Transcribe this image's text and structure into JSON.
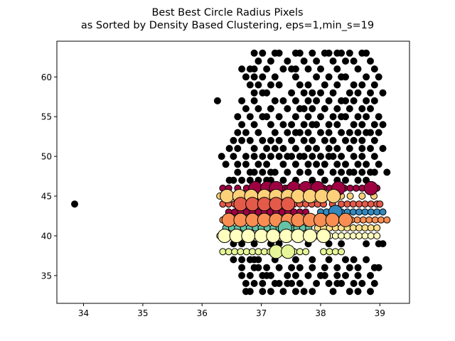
{
  "chart_data": {
    "type": "scatter",
    "title_line1": "Best Best Circle Radius Pixels",
    "title_line2": "as Sorted by Density Based Clustering, eps=1,min_s=19",
    "xlabel": "",
    "ylabel": "",
    "xlim": [
      33.55,
      39.5
    ],
    "ylim": [
      31.5,
      64.5
    ],
    "x_ticks": [
      34,
      35,
      36,
      37,
      38,
      39
    ],
    "y_ticks": [
      35,
      40,
      45,
      50,
      55,
      60
    ],
    "x_tick_labels": [
      "34",
      "35",
      "36",
      "37",
      "38",
      "39"
    ],
    "y_tick_labels": [
      "35",
      "40",
      "45",
      "50",
      "55",
      "60"
    ],
    "grid": false,
    "legend": "none",
    "noise_color": "#000000",
    "x_grid": [
      36.26,
      36.33,
      36.4,
      36.46,
      36.53,
      36.6,
      36.67,
      36.74,
      36.81,
      36.88,
      36.95,
      37.02,
      37.09,
      37.16,
      37.23,
      37.3,
      37.37,
      37.44,
      37.51,
      37.58,
      37.65,
      37.72,
      37.79,
      37.86,
      37.93,
      38.0,
      38.07,
      38.14,
      38.21,
      38.28,
      38.35,
      38.42,
      38.49,
      38.56,
      38.63,
      38.7,
      38.77,
      38.84,
      38.91,
      38.98,
      39.05,
      39.12
    ],
    "noise_rows": [
      {
        "y": 63,
        "xi": [
          9,
          11,
          14,
          15,
          19,
          20,
          23,
          26,
          27,
          29,
          30,
          32,
          35,
          36
        ]
      },
      {
        "y": 62,
        "xi": [
          10,
          13,
          17,
          21,
          24,
          28,
          31,
          33,
          37
        ]
      },
      {
        "y": 61,
        "xi": [
          6,
          8,
          9,
          12,
          16,
          18,
          19,
          22,
          25,
          29,
          34,
          38
        ]
      },
      {
        "y": 60,
        "xi": [
          7,
          9,
          11,
          14,
          19,
          24,
          27,
          30,
          31,
          36,
          39
        ]
      },
      {
        "y": 59,
        "xi": [
          8,
          10,
          13,
          15,
          20,
          22,
          26,
          29,
          33,
          35,
          38
        ]
      },
      {
        "y": 58,
        "xi": [
          9,
          11,
          12,
          18,
          21,
          23,
          25,
          28,
          32,
          34,
          37,
          40
        ]
      },
      {
        "y": 57,
        "xi": [
          0,
          6,
          9,
          14,
          16,
          19,
          22,
          24,
          27,
          30,
          31,
          33,
          36,
          38
        ]
      },
      {
        "y": 56,
        "xi": [
          7,
          10,
          13,
          17,
          20,
          21,
          23,
          26,
          29,
          32,
          35,
          37
        ]
      },
      {
        "y": 55,
        "xi": [
          5,
          8,
          11,
          12,
          15,
          19,
          22,
          25,
          28,
          30,
          31,
          34,
          36,
          39
        ]
      },
      {
        "y": 54,
        "xi": [
          6,
          9,
          13,
          16,
          18,
          21,
          23,
          24,
          27,
          29,
          33,
          35,
          38,
          40
        ]
      },
      {
        "y": 53,
        "xi": [
          5,
          7,
          10,
          14,
          17,
          19,
          20,
          22,
          25,
          27,
          30,
          32,
          34,
          36,
          37,
          39
        ]
      },
      {
        "y": 52,
        "xi": [
          4,
          6,
          8,
          11,
          13,
          15,
          18,
          21,
          23,
          26,
          28,
          31,
          33,
          35,
          38
        ]
      },
      {
        "y": 51,
        "xi": [
          3,
          5,
          9,
          12,
          14,
          16,
          19,
          22,
          24,
          27,
          29,
          32,
          35,
          37,
          40
        ]
      },
      {
        "y": 50,
        "xi": [
          1,
          4,
          7,
          9,
          11,
          13,
          15,
          17,
          18,
          20,
          21,
          23,
          25,
          27,
          28,
          30,
          33,
          35,
          38
        ]
      },
      {
        "y": 49,
        "xi": [
          2,
          5,
          7,
          10,
          12,
          16,
          19,
          22,
          24,
          26,
          29,
          31,
          34,
          36,
          39
        ]
      },
      {
        "y": 48,
        "xi": [
          5,
          8,
          9,
          11,
          13,
          14,
          17,
          20,
          22,
          25,
          28,
          30,
          32,
          33,
          35,
          37,
          38,
          41
        ]
      },
      {
        "y": 47,
        "xi": [
          3,
          4,
          6,
          8,
          10,
          12,
          13,
          16,
          19,
          23,
          26,
          29,
          31,
          34,
          36
        ]
      }
    ],
    "noise_rows_bottom": [
      {
        "y": 39,
        "xi": [
          4,
          6,
          9,
          13,
          15,
          22,
          27,
          30,
          36,
          39,
          40
        ]
      },
      {
        "y": 37,
        "xi": [
          4,
          6,
          8,
          9,
          10,
          14,
          19,
          23,
          27,
          31,
          33,
          36
        ]
      },
      {
        "y": 36,
        "xi": [
          6,
          9,
          10,
          12,
          15,
          18,
          20,
          23,
          26,
          29,
          32,
          34,
          38,
          39
        ]
      },
      {
        "y": 35,
        "xi": [
          6,
          8,
          11,
          12,
          13,
          17,
          19,
          22,
          25,
          26,
          29,
          31,
          34,
          37
        ]
      },
      {
        "y": 34,
        "xi": [
          7,
          9,
          11,
          14,
          15,
          17,
          18,
          20,
          24,
          27,
          29,
          30,
          33,
          35,
          38
        ]
      },
      {
        "y": 33,
        "xi": [
          7,
          8,
          11,
          13,
          16,
          19,
          21,
          23,
          28,
          32,
          34,
          37
        ]
      }
    ],
    "outlier": {
      "x": 33.85,
      "y": 44
    },
    "cluster_rows": [
      {
        "y": 46,
        "color": "#9e0142",
        "big": [
          36.9,
          37.1,
          37.25,
          37.55,
          37.75,
          37.95,
          38.3,
          38.85
        ],
        "small": [
          36.35,
          36.45,
          36.6,
          36.75,
          37.4,
          37.45,
          37.65,
          37.85,
          38.05,
          38.15,
          38.4,
          38.5,
          38.6,
          38.7,
          38.95
        ]
      },
      {
        "y": 45,
        "color": "#fdd07a",
        "big": [
          36.42,
          36.63,
          36.83,
          37.05,
          37.25,
          37.45,
          37.62,
          37.82,
          38.02,
          38.22
        ],
        "small": [
          36.3,
          36.55,
          36.73,
          36.93,
          37.15,
          37.35,
          37.55,
          37.72,
          37.92,
          38.12,
          38.35,
          38.5,
          38.7,
          38.9
        ]
      },
      {
        "y": 44,
        "color": "#e45a49",
        "big": [
          36.65,
          36.85,
          37.05,
          37.25,
          37.45
        ],
        "small": [
          36.35,
          36.45,
          36.55,
          36.75,
          36.95,
          37.15,
          37.35,
          37.55,
          37.65,
          37.75,
          37.85,
          37.95,
          38.05,
          38.2,
          38.35,
          38.45,
          38.55,
          38.65,
          38.75,
          38.85,
          38.95,
          39.0
        ]
      },
      {
        "y": 43,
        "color": "#9e0142",
        "big": [],
        "small": [
          36.45,
          36.55,
          36.65,
          36.75,
          36.85,
          36.95,
          37.05,
          37.15,
          37.25,
          37.35,
          37.45,
          37.55,
          37.65,
          37.75
        ]
      },
      {
        "y": 43,
        "color": "#3288bd",
        "big": [
          38.25
        ],
        "small": [
          38.0,
          38.1,
          38.35,
          38.45,
          38.55,
          38.65,
          38.75,
          38.85,
          38.95,
          39.05
        ]
      },
      {
        "y": 42,
        "color": "#f98e52",
        "big": [
          36.45,
          36.65,
          36.85,
          37.05,
          37.25,
          37.45,
          37.62,
          37.82,
          38.0,
          38.2,
          38.42
        ],
        "small": [
          36.35,
          36.55,
          36.75,
          36.95,
          37.15,
          37.35,
          37.55,
          37.72,
          37.92,
          38.1,
          38.3,
          38.52,
          38.62,
          38.72,
          38.82,
          38.92,
          39.02,
          39.12
        ]
      },
      {
        "y": 41,
        "color": "#66c2a5",
        "big": [
          37.4
        ],
        "small": [
          36.4,
          36.5,
          36.6,
          36.7,
          36.8,
          36.9,
          37.0,
          37.1,
          37.2,
          37.3,
          37.5,
          37.6,
          37.7,
          37.8
        ]
      },
      {
        "y": 41,
        "color": "#fee08b",
        "big": [],
        "small": [
          37.95,
          38.05,
          38.15,
          38.25,
          38.35,
          38.45,
          38.55,
          38.65,
          38.75,
          38.85,
          38.95
        ]
      },
      {
        "y": 40,
        "color": "#ffffbf",
        "big": [
          36.38,
          36.58,
          36.78,
          37.0,
          37.2,
          37.42,
          37.62,
          37.82,
          38.05
        ],
        "small": [
          36.3,
          36.5,
          36.7,
          36.9,
          37.1,
          37.3,
          37.52,
          37.72,
          37.92,
          38.15,
          38.25,
          38.35,
          38.45,
          38.55,
          38.65,
          38.75,
          38.85,
          38.95
        ]
      },
      {
        "y": 38,
        "color": "#e6f598",
        "big": [
          37.25,
          37.45
        ],
        "small": [
          36.35,
          36.45,
          36.55,
          36.65,
          36.75,
          36.85,
          36.95,
          37.05,
          37.15,
          37.35,
          37.55,
          37.65,
          37.75,
          38.05,
          38.15,
          38.25,
          38.35
        ]
      }
    ]
  }
}
